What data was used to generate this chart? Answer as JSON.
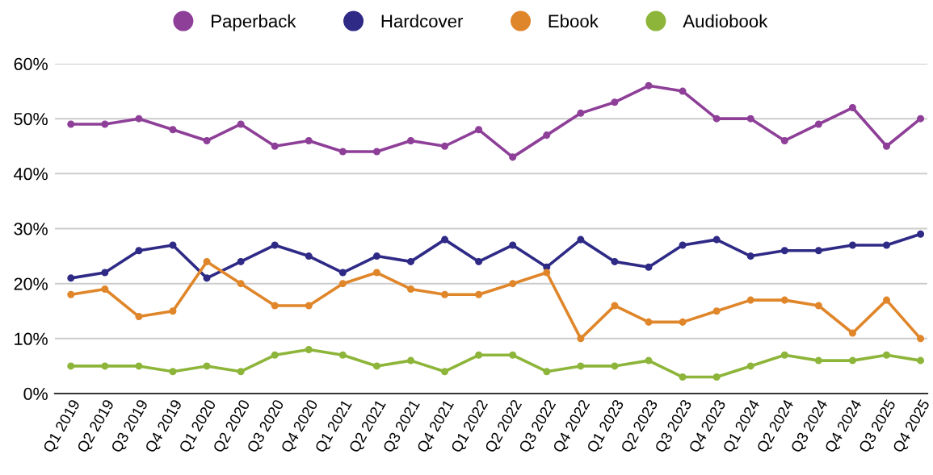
{
  "chart_data": {
    "type": "line",
    "categories": [
      "Q1 2019",
      "Q2 2019",
      "Q3 2019",
      "Q4 2019",
      "Q1 2020",
      "Q2 2020",
      "Q3 2020",
      "Q4 2020",
      "Q1 2021",
      "Q2 2021",
      "Q3 2021",
      "Q4 2021",
      "Q1 2022",
      "Q2 2022",
      "Q3 2022",
      "Q4 2022",
      "Q1 2023",
      "Q2 2023",
      "Q3 2023",
      "Q4 2023",
      "Q1 2024",
      "Q2 2024",
      "Q3 2024",
      "Q4 2024",
      "Q3 2025",
      "Q4 2025"
    ],
    "series": [
      {
        "name": "Paperback",
        "color": "#8e3f98",
        "values": [
          49,
          49,
          50,
          48,
          46,
          49,
          45,
          46,
          44,
          44,
          46,
          45,
          48,
          43,
          47,
          51,
          53,
          56,
          55,
          50,
          50,
          46,
          49,
          52,
          45,
          50
        ]
      },
      {
        "name": "Hardcover",
        "color": "#2e2a86",
        "values": [
          21,
          22,
          26,
          27,
          21,
          24,
          27,
          25,
          22,
          25,
          24,
          28,
          24,
          27,
          23,
          28,
          24,
          23,
          27,
          28,
          25,
          26,
          26,
          27,
          27,
          29
        ]
      },
      {
        "name": "Ebook",
        "color": "#e0862a",
        "values": [
          18,
          19,
          14,
          15,
          24,
          20,
          16,
          16,
          20,
          22,
          19,
          18,
          18,
          20,
          22,
          10,
          16,
          13,
          13,
          15,
          17,
          17,
          16,
          11,
          17,
          10
        ]
      },
      {
        "name": "Audiobook",
        "color": "#8db53a",
        "values": [
          5,
          5,
          5,
          4,
          5,
          4,
          7,
          8,
          7,
          5,
          6,
          4,
          7,
          7,
          4,
          5,
          5,
          6,
          3,
          3,
          5,
          7,
          6,
          6,
          7,
          6
        ]
      }
    ],
    "ylim": [
      0,
      60
    ],
    "yticks": [
      {
        "value": 0,
        "label": "0%"
      },
      {
        "value": 10,
        "label": "10%"
      },
      {
        "value": 20,
        "label": "20%"
      },
      {
        "value": 30,
        "label": "30%"
      },
      {
        "value": 40,
        "label": "40%"
      },
      {
        "value": 50,
        "label": "50%"
      },
      {
        "value": 60,
        "label": "60%"
      }
    ],
    "grid": "y",
    "legend": "top",
    "marker": "circle",
    "line_style": "solid"
  }
}
